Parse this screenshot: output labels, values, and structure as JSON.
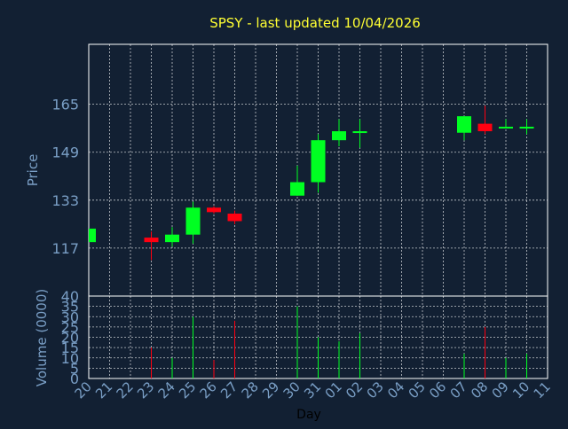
{
  "chart_data": {
    "type": "candlestick",
    "title": "SPSY - last updated 10/04/2026",
    "xlabel": "Day",
    "price_panel": {
      "ylabel": "Price",
      "yticks": [
        117,
        133,
        149,
        165
      ],
      "ylim": [
        101,
        185
      ]
    },
    "volume_panel": {
      "ylabel": "Volume (0000)",
      "yticks": [
        0,
        5,
        10,
        15,
        20,
        25,
        30,
        35,
        40
      ],
      "ylim": [
        0,
        40
      ]
    },
    "categories": [
      "20",
      "21",
      "22",
      "23",
      "24",
      "25",
      "26",
      "27",
      "28",
      "29",
      "30",
      "31",
      "01",
      "02",
      "03",
      "04",
      "05",
      "06",
      "07",
      "08",
      "09",
      "10",
      "11"
    ],
    "candles": [
      {
        "x": "20",
        "open": 119.0,
        "high": 123.5,
        "low": 119.0,
        "close": 123.5
      },
      {
        "x": "23",
        "open": 120.5,
        "high": 122.5,
        "low": 113.0,
        "close": 119.0
      },
      {
        "x": "24",
        "open": 119.0,
        "high": 124.0,
        "low": 117.5,
        "close": 121.5
      },
      {
        "x": "25",
        "open": 121.5,
        "high": 132.5,
        "low": 118.5,
        "close": 130.5
      },
      {
        "x": "26",
        "open": 130.5,
        "high": 131.0,
        "low": 128.5,
        "close": 129.0
      },
      {
        "x": "27",
        "open": 128.5,
        "high": 129.5,
        "low": 125.0,
        "close": 126.0
      },
      {
        "x": "30",
        "open": 134.5,
        "high": 144.5,
        "low": 134.5,
        "close": 139.0
      },
      {
        "x": "31",
        "open": 139.0,
        "high": 155.0,
        "low": 135.5,
        "close": 153.0
      },
      {
        "x": "01",
        "open": 153.0,
        "high": 160.0,
        "low": 151.0,
        "close": 156.0
      },
      {
        "x": "02",
        "open": 155.5,
        "high": 160.0,
        "low": 150.5,
        "close": 156.0
      },
      {
        "x": "07",
        "open": 155.5,
        "high": 161.0,
        "low": 153.0,
        "close": 161.0
      },
      {
        "x": "08",
        "open": 158.5,
        "high": 164.5,
        "low": 155.0,
        "close": 156.0
      },
      {
        "x": "09",
        "open": 157.5,
        "high": 160.0,
        "low": 157.5,
        "close": 157.5
      },
      {
        "x": "10",
        "open": 157.5,
        "high": 160.0,
        "low": 155.0,
        "close": 157.5
      }
    ],
    "volume": [
      {
        "x": "23",
        "value": 15
      },
      {
        "x": "24",
        "value": 10
      },
      {
        "x": "25",
        "value": 30
      },
      {
        "x": "26",
        "value": 9
      },
      {
        "x": "27",
        "value": 28
      },
      {
        "x": "30",
        "value": 35
      },
      {
        "x": "31",
        "value": 20
      },
      {
        "x": "01",
        "value": 18
      },
      {
        "x": "02",
        "value": 22
      },
      {
        "x": "07",
        "value": 12
      },
      {
        "x": "08",
        "value": 25
      },
      {
        "x": "09",
        "value": 10
      },
      {
        "x": "10",
        "value": 12
      }
    ],
    "grid": true,
    "colors": {
      "background": "#122033",
      "up": "#00ff22",
      "down": "#ff0011",
      "title": "#ffff33",
      "axis_text": "#7a9fc6",
      "frame": "#ffffff"
    }
  }
}
